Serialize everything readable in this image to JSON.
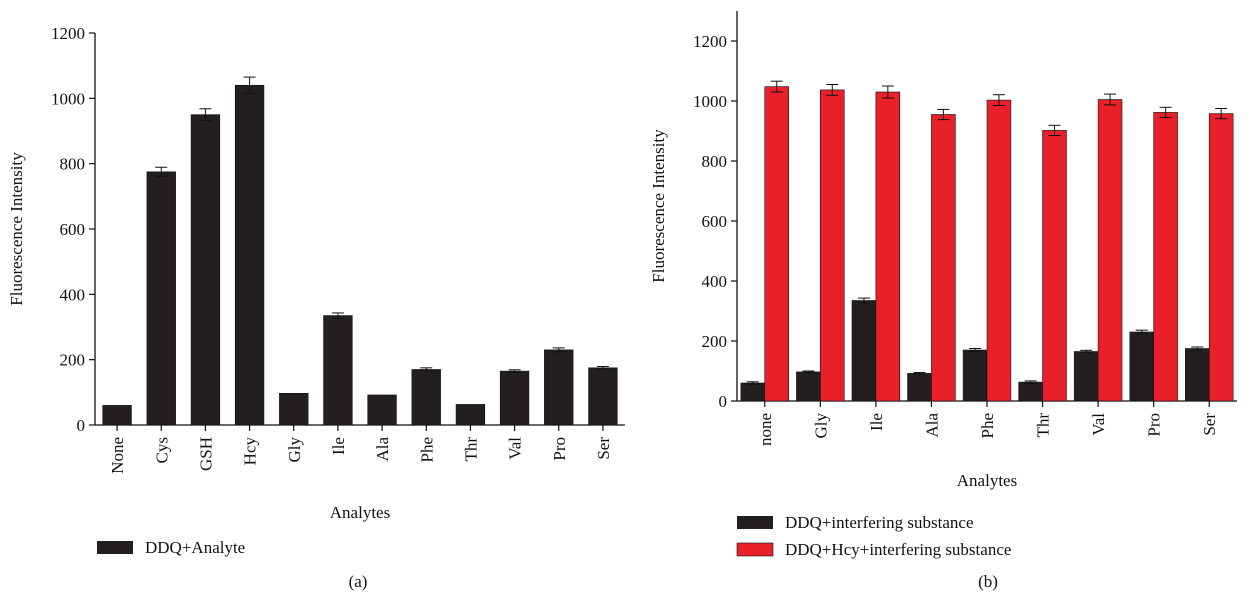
{
  "colors": {
    "dark_bar": "#231f20",
    "red_bar": "#e8202a",
    "axis": "#111111"
  },
  "chart_data": [
    {
      "panel_label": "(a)",
      "type": "bar",
      "xlabel": "Analytes",
      "ylabel": "Fluorescence Intensity",
      "ylim": [
        0,
        1200
      ],
      "yticks": [
        0,
        200,
        400,
        600,
        800,
        1000,
        1200
      ],
      "categories": [
        "None",
        "Cys",
        "GSH",
        "Hcy",
        "Gly",
        "Ile",
        "Ala",
        "Phe",
        "Thr",
        "Val",
        "Pro",
        "Ser"
      ],
      "series": [
        {
          "name": "DDQ+Analyte",
          "color": "#231f20",
          "values": [
            60,
            775,
            950,
            1040,
            97,
            335,
            92,
            170,
            63,
            165,
            230,
            175
          ],
          "errors": [
            0,
            14,
            18,
            25,
            0,
            8,
            0,
            5,
            0,
            4,
            6,
            4
          ]
        }
      ],
      "legend": "bottom-left",
      "grid": false
    },
    {
      "panel_label": "(b)",
      "type": "bar",
      "xlabel": "Analytes",
      "ylabel": "Fluorescence Intensity",
      "ylim": [
        0,
        1300
      ],
      "yticks": [
        0,
        200,
        400,
        600,
        800,
        1000,
        1200
      ],
      "categories": [
        "none",
        "Gly",
        "Ile",
        "Ala",
        "Phe",
        "Thr",
        "Val",
        "Pro",
        "Ser"
      ],
      "series": [
        {
          "name": "DDQ+interfering substance",
          "color": "#231f20",
          "values": [
            60,
            97,
            335,
            92,
            170,
            63,
            165,
            230,
            175
          ],
          "errors": [
            4,
            3,
            8,
            3,
            5,
            4,
            4,
            6,
            5
          ]
        },
        {
          "name": "DDQ+Hcy+interfering substance",
          "color": "#e8202a",
          "values": [
            1048,
            1037,
            1030,
            955,
            1003,
            902,
            1005,
            962,
            958
          ],
          "errors": [
            18,
            18,
            20,
            17,
            18,
            17,
            18,
            17,
            17
          ]
        }
      ],
      "legend": "bottom-left",
      "grid": false
    }
  ]
}
